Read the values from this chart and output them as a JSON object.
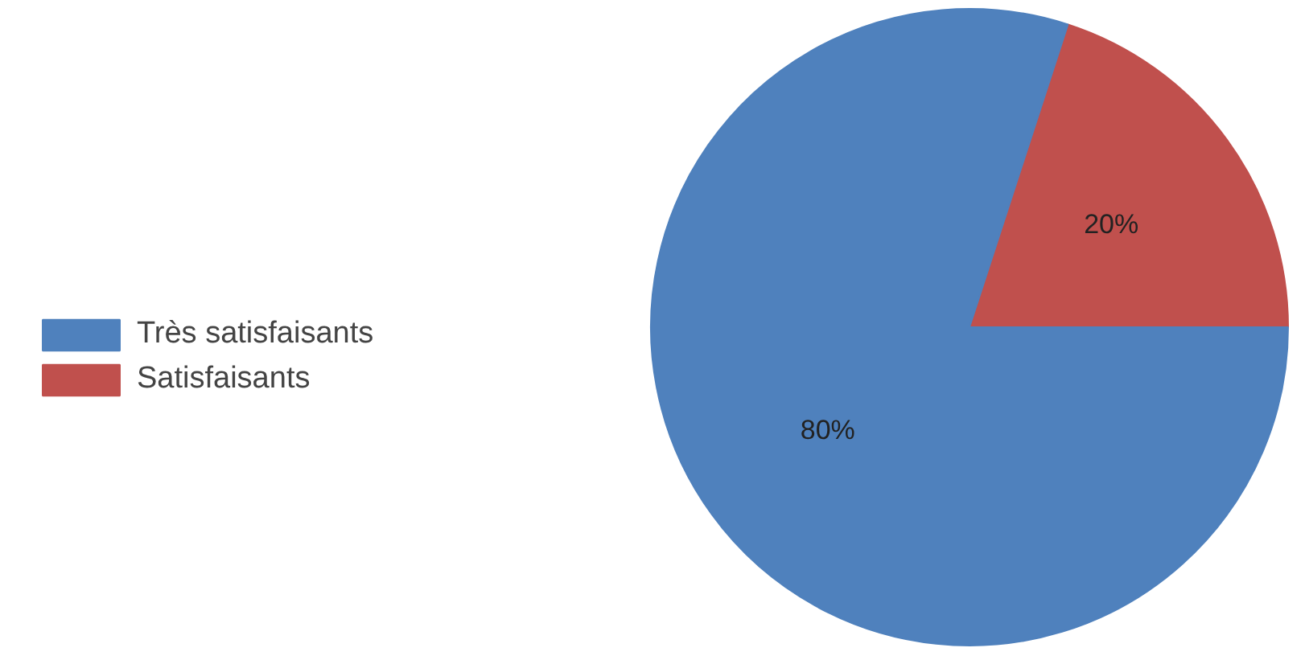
{
  "chart_data": {
    "type": "pie",
    "categories": [
      "Très satisfaisants",
      "Satisfaisants"
    ],
    "values": [
      80,
      20
    ],
    "colors": [
      "#4f81bd",
      "#c0504d"
    ],
    "value_labels": [
      "80%",
      "20%"
    ],
    "legend": "left"
  }
}
